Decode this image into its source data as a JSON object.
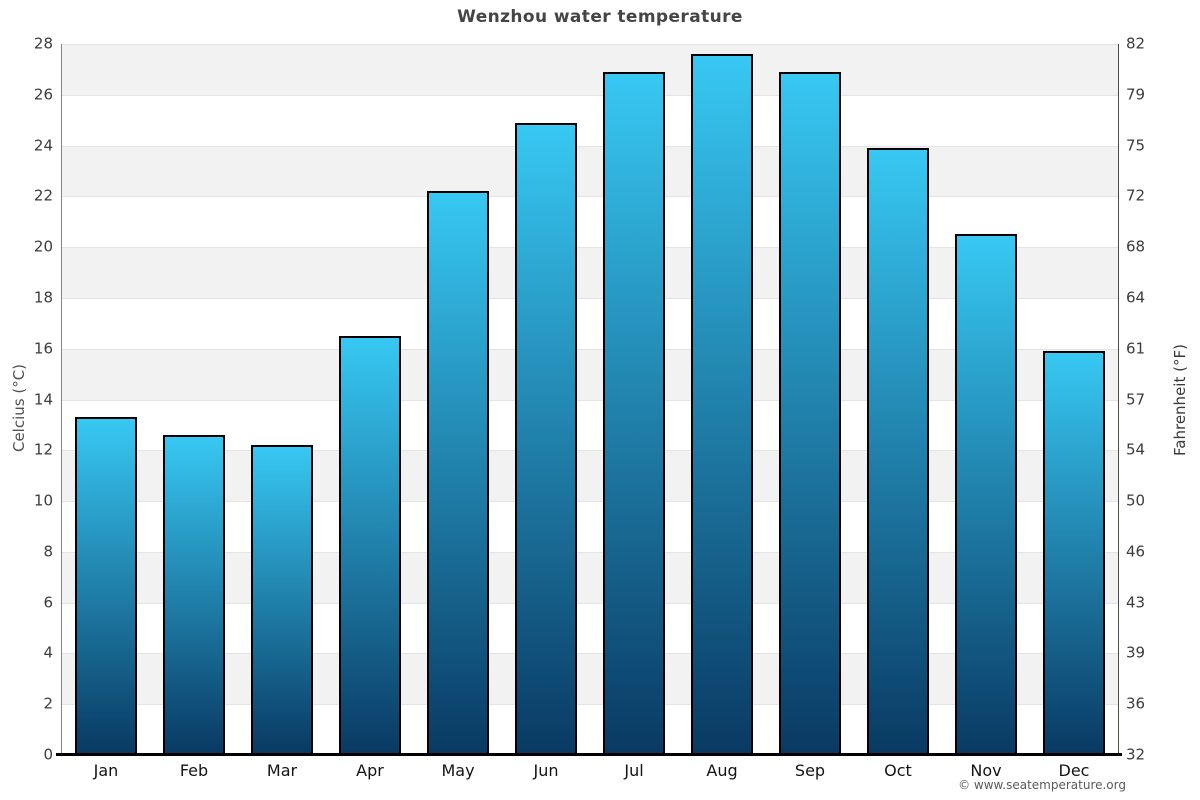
{
  "page": {
    "footer_copyright": "© www.seatemperature.org"
  },
  "chart_data": {
    "type": "bar",
    "title": "Wenzhou water temperature",
    "categories": [
      "Jan",
      "Feb",
      "Mar",
      "Apr",
      "May",
      "Jun",
      "Jul",
      "Aug",
      "Sep",
      "Oct",
      "Nov",
      "Dec"
    ],
    "values": [
      13.3,
      12.6,
      12.2,
      16.5,
      22.2,
      24.9,
      26.9,
      27.6,
      26.9,
      23.9,
      20.5,
      15.9
    ],
    "ylabel_left": "Celcius (°C)",
    "ylabel_right": "Fahrenheit (°F)",
    "ylim": [
      0,
      28
    ],
    "y_ticks_celsius": [
      0,
      2,
      4,
      6,
      8,
      10,
      12,
      14,
      16,
      18,
      20,
      22,
      24,
      26,
      28
    ],
    "y_ticks_fahrenheit": [
      32,
      36,
      39,
      43,
      46,
      50,
      54,
      57,
      61,
      64,
      68,
      72,
      75,
      79,
      82
    ],
    "grid": "alternating horizontal 2°C bands, gray band at top (26-28)",
    "legend_position": "none",
    "colors": {
      "bar_top": "#37c8f3",
      "bar_bottom": "#093a63",
      "bar_border": "#000000",
      "band_dark": "#f2f2f2",
      "band_light": "#ffffff",
      "gridline": "#e4e4e4",
      "title": "#454545",
      "tick_text": "#3c3c3c",
      "bottom_axis": "#000000"
    }
  }
}
